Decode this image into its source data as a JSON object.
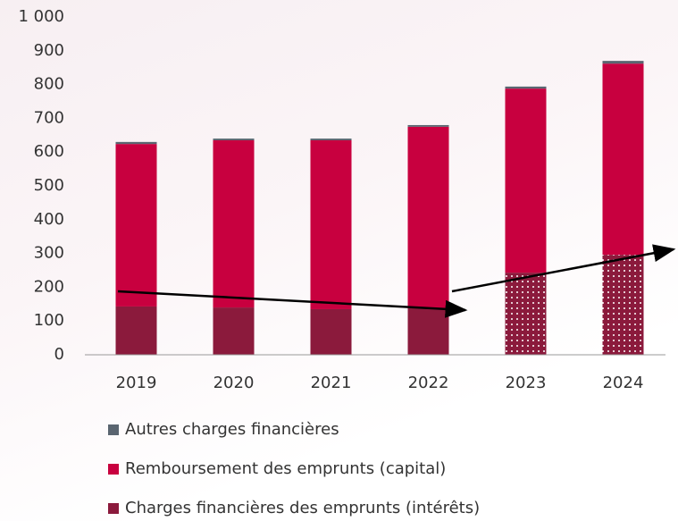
{
  "chart_data": {
    "type": "stacked_bar",
    "categories": [
      "2019",
      "2020",
      "2021",
      "2022",
      "2023",
      "2024"
    ],
    "series": [
      {
        "name": "Charges financières des emprunts (intérêts)",
        "color": "#8b1a3c",
        "values": [
          143,
          140,
          135,
          138,
          243,
          296
        ],
        "dotted": [
          false,
          false,
          false,
          false,
          true,
          true
        ]
      },
      {
        "name": "Remboursement des emprunts (capital)",
        "color": "#c8003f",
        "values": [
          481,
          495,
          500,
          537,
          545,
          566
        ]
      },
      {
        "name": "Autres charges financières",
        "color": "#5a6570",
        "values": [
          6,
          5,
          5,
          5,
          6,
          8
        ]
      }
    ],
    "ylim": [
      0,
      1000
    ],
    "yticks": [
      0,
      100,
      200,
      300,
      400,
      500,
      600,
      700,
      800,
      900,
      {
        "value": 1000,
        "label": "1 000"
      }
    ],
    "legend": "bottom"
  }
}
